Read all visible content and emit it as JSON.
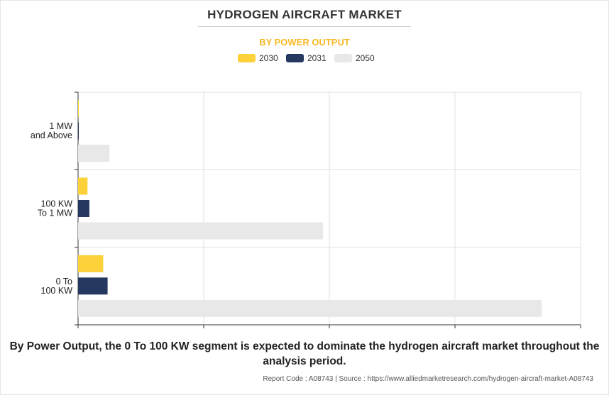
{
  "header": {
    "title": "HYDROGEN AIRCRAFT MARKET",
    "subtitle": "BY POWER OUTPUT"
  },
  "chart_data": {
    "type": "bar",
    "orientation": "horizontal",
    "categories": [
      "1 MW\nand Above",
      "100 KW\nTo 1 MW",
      "0 To\n100 KW"
    ],
    "series": [
      {
        "name": "2030",
        "color": "#fdd13a",
        "values": [
          0.1,
          1.5,
          4.0
        ]
      },
      {
        "name": "2031",
        "color": "#25385f",
        "values": [
          0.1,
          1.8,
          4.7
        ]
      },
      {
        "name": "2050",
        "color": "#e8e8e8",
        "values": [
          5.0,
          39.0,
          73.8
        ]
      }
    ],
    "xlim": [
      0,
      80
    ],
    "grid": true,
    "legend_position": "top-center"
  },
  "footer": {
    "caption": "By Power Output, the 0 To 100 KW segment is expected to dominate the hydrogen aircraft market throughout the analysis period.",
    "source": "Report Code : A08743  |  Source : https://www.alliedmarketresearch.com/hydrogen-aircraft-market-A08743"
  }
}
